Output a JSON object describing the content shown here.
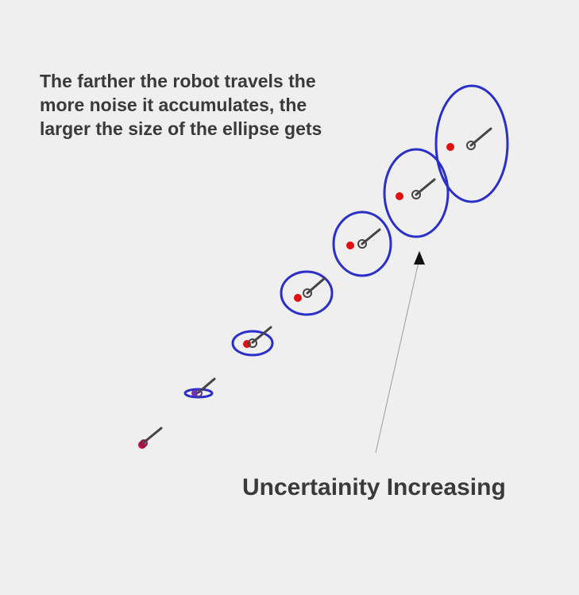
{
  "caption": {
    "lines": [
      "The farther the robot travels the",
      "more noise it accumulates, the",
      "larger the size of the ellipse gets"
    ]
  },
  "arrow_label": "Uncertainity Increasing",
  "colors": {
    "background": "#efefef",
    "ellipse": "#2a2fc8",
    "estimate_point": "#e01010",
    "robot_marker": "#444444",
    "text": "#3a3a3a",
    "arrow": "#999999"
  },
  "poses_count_note_shown": false
}
